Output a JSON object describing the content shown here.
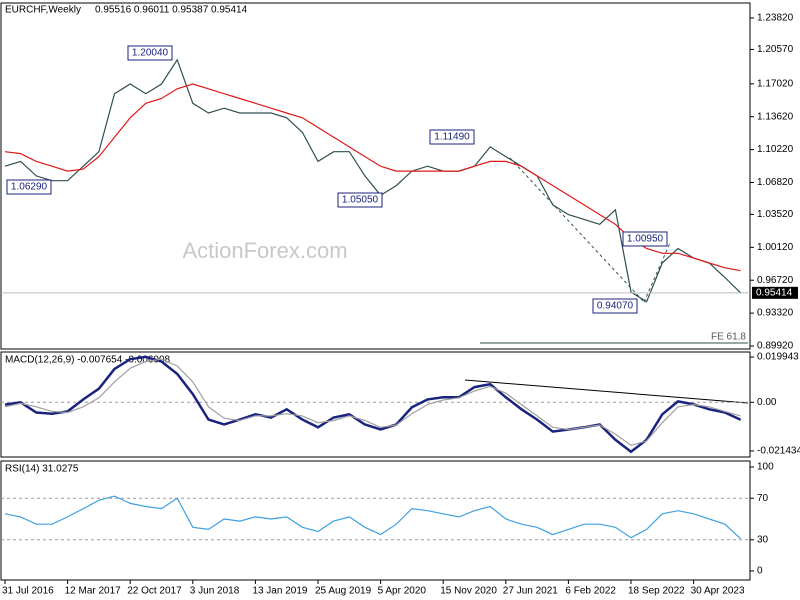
{
  "chart_data": [
    {
      "type": "line",
      "title": "EURCHF,Weekly",
      "subtitle": "0.95516 0.96011 0.95387 0.95414",
      "watermark": "ActionForex.com",
      "categories": [
        "31 Jul 2016",
        null,
        null,
        null,
        "12 Mar 2017",
        null,
        null,
        null,
        "22 Oct 2017",
        null,
        null,
        null,
        "3 Jun 2018",
        null,
        null,
        null,
        "13 Jan 2019",
        null,
        null,
        null,
        "25 Aug 2019",
        null,
        null,
        null,
        "5 Apr 2020",
        null,
        null,
        null,
        "15 Nov 2020",
        null,
        null,
        null,
        "27 Jun 2021",
        null,
        null,
        null,
        "6 Feb 2022",
        null,
        null,
        null,
        "18 Sep 2022",
        null,
        null,
        null,
        "30 Apr 2023",
        null,
        null,
        null
      ],
      "series": [
        {
          "color": "#2f4f4f",
          "values": [
            1.085,
            1.09,
            1.075,
            1.07,
            1.07,
            1.085,
            1.1,
            1.16,
            1.17,
            1.16,
            1.17,
            1.195,
            1.15,
            1.14,
            1.145,
            1.14,
            1.14,
            1.14,
            1.135,
            1.12,
            1.09,
            1.1,
            1.1,
            1.075,
            1.055,
            1.065,
            1.08,
            1.085,
            1.08,
            1.08,
            1.085,
            1.105,
            1.095,
            1.085,
            1.075,
            1.045,
            1.035,
            1.03,
            1.025,
            1.04,
            0.955,
            0.945,
            0.985,
            1.0,
            0.99,
            0.985,
            0.97,
            0.95414
          ]
        },
        {
          "color": "#e01818",
          "values": [
            1.1,
            1.098,
            1.09,
            1.085,
            1.08,
            1.082,
            1.095,
            1.115,
            1.135,
            1.15,
            1.155,
            1.165,
            1.17,
            1.165,
            1.16,
            1.155,
            1.15,
            1.145,
            1.14,
            1.135,
            1.125,
            1.115,
            1.105,
            1.095,
            1.085,
            1.08,
            1.08,
            1.08,
            1.08,
            1.08,
            1.085,
            1.09,
            1.09,
            1.085,
            1.075,
            1.065,
            1.055,
            1.045,
            1.035,
            1.025,
            1.01,
            1.0,
            0.995,
            0.995,
            0.99,
            0.985,
            0.98,
            0.977
          ]
        }
      ],
      "annotations": [
        {
          "value": 1.2004,
          "label": "1.20040"
        },
        {
          "value": 1.0629,
          "label": "1.06290"
        },
        {
          "value": 1.0505,
          "label": "1.05050"
        },
        {
          "value": 1.1149,
          "label": "1.11490"
        },
        {
          "value": 1.0095,
          "label": "1.00950"
        },
        {
          "value": 0.9407,
          "label": "0.94070"
        }
      ],
      "fe_label": "FE 61.8",
      "ylim": [
        0.8961,
        1.2537
      ],
      "yticks": [
        {
          "value": 1.2382,
          "label": "1.23820"
        },
        {
          "value": 1.2057,
          "label": "1.20570"
        },
        {
          "value": 1.1702,
          "label": "1.17020"
        },
        {
          "value": 1.1362,
          "label": "1.13620"
        },
        {
          "value": 1.1022,
          "label": "1.10220"
        },
        {
          "value": 1.0682,
          "label": "1.06820"
        },
        {
          "value": 1.0352,
          "label": "1.03520"
        },
        {
          "value": 1.0012,
          "label": "1.00120"
        },
        {
          "value": 0.9672,
          "label": "0.96720"
        },
        {
          "value": 0.9332,
          "label": "0.93320"
        },
        {
          "value": 0.8992,
          "label": "0.89920"
        }
      ],
      "grid": false
    },
    {
      "type": "line",
      "title": "MACD(12,26,9) -0.007654 -0.006008",
      "series": [
        {
          "color": "#1a237e",
          "values": [
            -0.001,
            0,
            -0.0045,
            -0.005,
            -0.004,
            0.0013,
            0.006,
            0.0147,
            0.019,
            0.02,
            0.018,
            0.0125,
            0.0036,
            -0.0076,
            -0.0098,
            -0.0076,
            -0.0053,
            -0.0067,
            -0.0031,
            -0.0076,
            -0.011,
            -0.0067,
            -0.0053,
            -0.0098,
            -0.012,
            -0.0098,
            -0.0022,
            0.0013,
            0.0022,
            0.0022,
            0.0067,
            0.008,
            0.0022,
            -0.0031,
            -0.0076,
            -0.0129,
            -0.012,
            -0.011,
            -0.0098,
            -0.0165,
            -0.0218,
            -0.0165,
            -0.0053,
            0.0004,
            -0.0009,
            -0.0031,
            -0.0045,
            -0.007654
          ]
        },
        {
          "color": "#a0a0a0",
          "values": [
            -0.002,
            -0.0005,
            -0.002,
            -0.004,
            -0.0045,
            -0.002,
            0.002,
            0.009,
            0.015,
            0.018,
            0.019,
            0.016,
            0.009,
            -0.002,
            -0.007,
            -0.008,
            -0.006,
            -0.006,
            -0.005,
            -0.006,
            -0.009,
            -0.008,
            -0.006,
            -0.008,
            -0.011,
            -0.01,
            -0.005,
            -0.001,
            0.001,
            0.002,
            0.005,
            0.007,
            0.004,
            -0.001,
            -0.006,
            -0.011,
            -0.012,
            -0.011,
            -0.01,
            -0.014,
            -0.019,
            -0.017,
            -0.009,
            -0.002,
            -0.001,
            -0.002,
            -0.004,
            -0.006008
          ]
        }
      ],
      "ylim": [
        -0.0241,
        0.02217
      ],
      "yticks": [
        0.019943,
        {
          "value": 0,
          "label": "0.00"
        },
        -0.021434
      ],
      "grid": "levels"
    },
    {
      "type": "line",
      "title": "RSI(14) 31.0275",
      "series": [
        {
          "color": "#3fa0e0",
          "values": [
            55,
            52,
            45,
            45,
            52,
            60,
            68,
            72,
            65,
            62,
            60,
            70,
            42,
            40,
            50,
            48,
            52,
            50,
            52,
            42,
            38,
            48,
            52,
            42,
            35,
            45,
            60,
            58,
            55,
            52,
            58,
            62,
            50,
            45,
            42,
            35,
            40,
            45,
            45,
            42,
            32,
            40,
            55,
            58,
            55,
            50,
            45,
            31.0275
          ]
        }
      ],
      "ylim": [
        -8.7,
        105.8
      ],
      "yticks": [
        100,
        70,
        30,
        0
      ],
      "grid": "levels"
    }
  ]
}
